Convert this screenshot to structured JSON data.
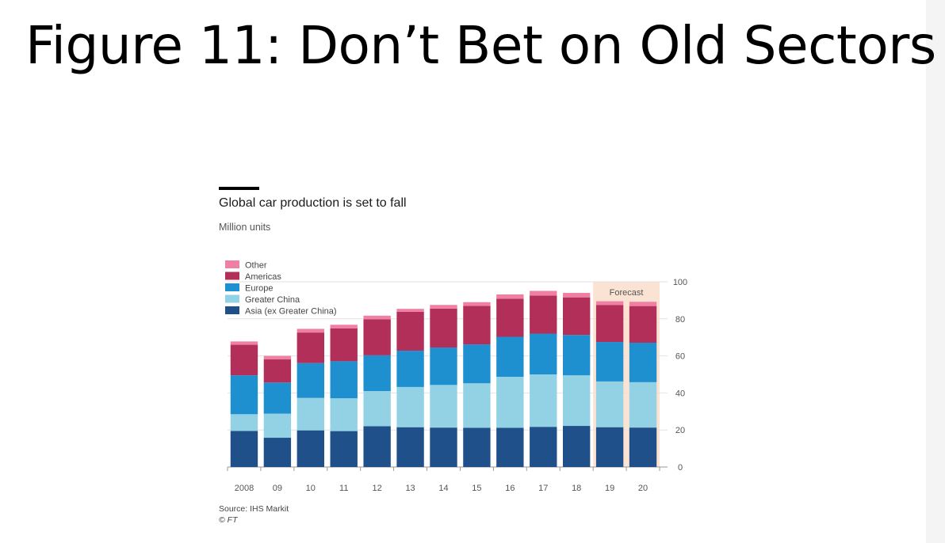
{
  "slide": {
    "title": "Figure 11: Don’t Bet on Old Sectors"
  },
  "chart_data": {
    "type": "bar",
    "stacked": true,
    "title": "Global car production is set to fall",
    "subtitle": "Million units",
    "categories": [
      "2008",
      "09",
      "10",
      "11",
      "12",
      "13",
      "14",
      "15",
      "16",
      "17",
      "18",
      "19",
      "20"
    ],
    "series": [
      {
        "name": "Asia (ex Greater China)",
        "color": "#1f5089",
        "values": [
          19.5,
          15.8,
          19.8,
          19.4,
          22.0,
          21.5,
          21.3,
          21.2,
          21.2,
          21.7,
          22.2,
          21.5,
          21.3
        ]
      },
      {
        "name": "Greater China",
        "color": "#93d2e5",
        "values": [
          9.0,
          13.0,
          17.5,
          17.7,
          19.0,
          21.7,
          23.0,
          24.0,
          27.5,
          28.3,
          27.3,
          24.7,
          24.5
        ]
      },
      {
        "name": "Europe",
        "color": "#1e90d0",
        "values": [
          21.0,
          16.8,
          18.8,
          20.0,
          19.3,
          19.6,
          20.2,
          21.0,
          21.6,
          22.0,
          21.8,
          21.3,
          21.3
        ]
      },
      {
        "name": "Americas",
        "color": "#b22f5a",
        "values": [
          16.5,
          12.5,
          16.5,
          17.7,
          19.5,
          21.0,
          21.0,
          20.8,
          20.6,
          20.6,
          20.3,
          20.0,
          19.8
        ]
      },
      {
        "name": "Other",
        "color": "#f07fa4",
        "values": [
          1.8,
          1.9,
          2.0,
          2.0,
          1.9,
          1.6,
          2.0,
          2.0,
          2.3,
          2.5,
          2.4,
          2.0,
          2.3
        ]
      }
    ],
    "ylim": [
      0,
      100
    ],
    "yticks": [
      0,
      20,
      40,
      60,
      80,
      100
    ],
    "yaxis_position": "right",
    "legend_position": "top-left",
    "grid": true,
    "annotation": {
      "text": "Forecast",
      "from": "19",
      "to": "20",
      "color": "#fbe3d3"
    },
    "source": "Source: IHS Markit",
    "credit": "© FT"
  }
}
